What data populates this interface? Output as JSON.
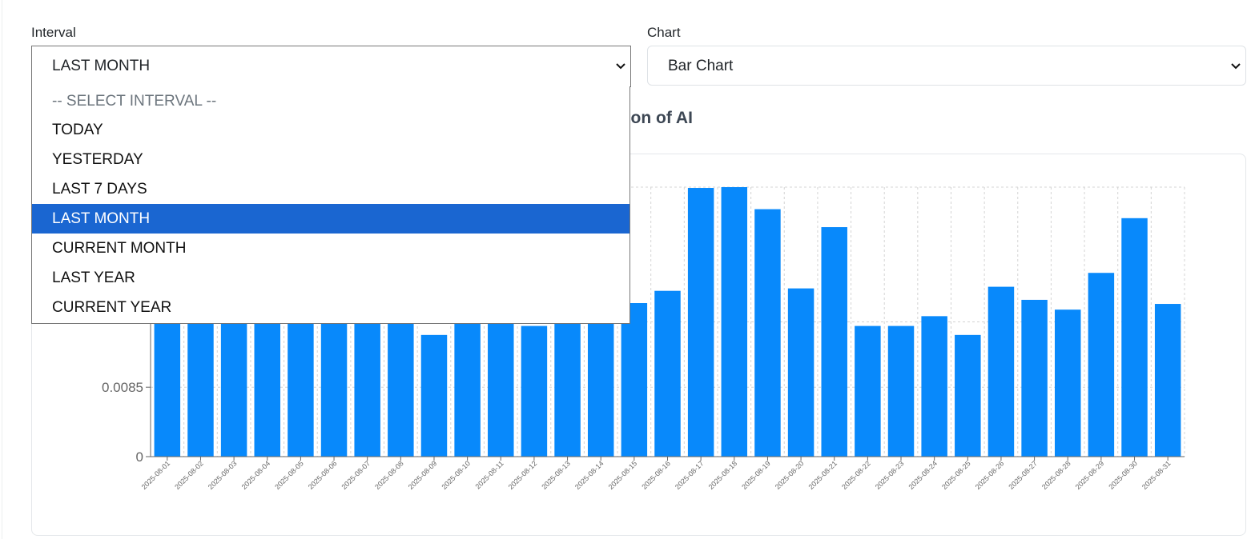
{
  "filters": {
    "interval": {
      "label": "Interval",
      "selected": "LAST MONTH",
      "options": [
        "-- SELECT INTERVAL --",
        "TODAY",
        "YESTERDAY",
        "LAST 7 DAYS",
        "LAST MONTH",
        "CURRENT MONTH",
        "LAST YEAR",
        "CURRENT YEAR"
      ]
    },
    "chart": {
      "label": "Chart",
      "selected": "Bar Chart"
    }
  },
  "chart_title_visible": "resentation of AI",
  "colors": {
    "bar": "#0889fb",
    "selected_option": "#1a66d1"
  },
  "chart_data": {
    "type": "bar",
    "title": "resentation of AI",
    "categories": [
      "2025-08-01",
      "2025-08-02",
      "2025-08-03",
      "2025-08-04",
      "2025-08-05",
      "2025-08-06",
      "2025-08-07",
      "2025-08-08",
      "2025-08-09",
      "2025-08-10",
      "2025-08-11",
      "2025-08-12",
      "2025-08-13",
      "2025-08-14",
      "2025-08-15",
      "2025-08-16",
      "2025-08-17",
      "2025-08-18",
      "2025-08-19",
      "2025-08-20",
      "2025-08-21",
      "2025-08-22",
      "2025-08-23",
      "2025-08-24",
      "2025-08-25",
      "2025-08-26",
      "2025-08-27",
      "2025-08-28",
      "2025-08-29",
      "2025-08-30",
      "2025-08-31"
    ],
    "values": [
      0.0163,
      0.0163,
      0.0163,
      0.0163,
      0.0163,
      0.0163,
      0.0163,
      0.0163,
      0.0149,
      0.0163,
      0.0163,
      0.016,
      0.0163,
      0.0163,
      0.0188,
      0.0203,
      0.0329,
      0.033,
      0.0303,
      0.0206,
      0.0281,
      0.016,
      0.016,
      0.0172,
      0.0149,
      0.0208,
      0.0192,
      0.018,
      0.0225,
      0.0292,
      0.0187
    ],
    "yticks": [
      {
        "value": 0,
        "label": "0"
      },
      {
        "value": 0.0085,
        "label": "0.0085"
      }
    ],
    "ylim": [
      0,
      0.033
    ],
    "grid": true
  }
}
